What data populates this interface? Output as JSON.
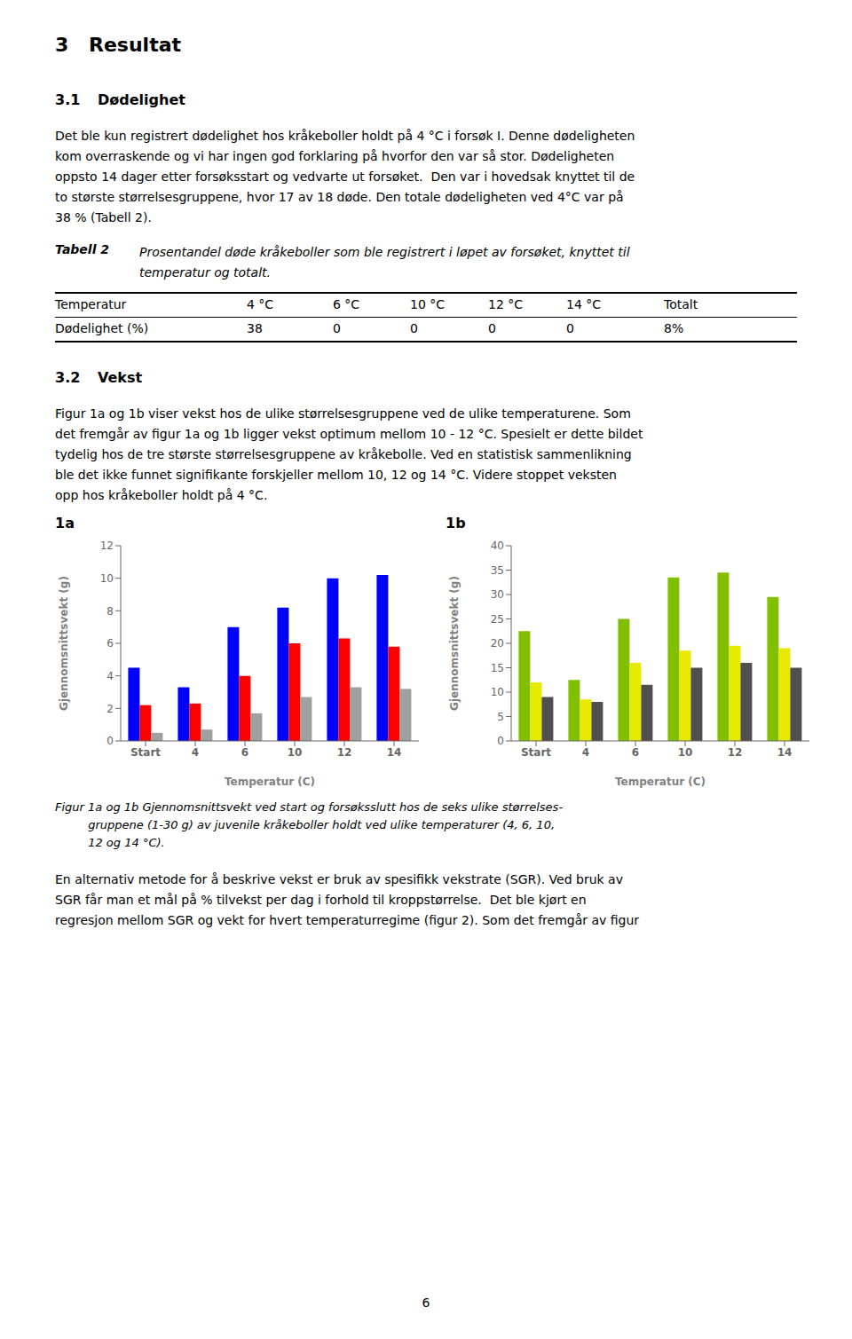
{
  "title": [
    "3",
    "Resultat"
  ],
  "annotations": {
    "section_31": [
      "3.1",
      "Dødelighet"
    ],
    "para1": [
      "Det ble kun registrert dødelighet hos kråkeboller holdt på 4 °C i forsøk I. Denne dødeligheten",
      "kom overraskende og vi har ingen god forklaring på hvorfor den var så stor. Dødeligheten",
      "oppsto 14 dager etter forsøksstart og vedvarte ut forsøket.  Den var i hovedsak knyttet til de",
      "to største størrelsesgruppene, hvor 17 av 18 døde. Den totale dødeligheten ved 4°C var på",
      "38 % (Tabell 2)."
    ],
    "table_caption": [
      "Tabell 2",
      "Prosentandel døde kråkeboller som ble registrert i løpet av forsøket, knyttet til",
      "temperatur og totalt."
    ],
    "table": {
      "headers": [
        "Temperatur",
        "4 °C",
        "6 °C",
        "10 °C",
        "12 °C",
        "14 °C",
        "Totalt"
      ],
      "rows": [
        [
          "Dødelighet (%)",
          "38",
          "0",
          "0",
          "0",
          "0",
          "8%"
        ]
      ]
    },
    "section_32": [
      "3.2",
      "Vekst"
    ],
    "para2": [
      "Figur 1a og 1b viser vekst hos de ulike størrelsesgruppene ved de ulike temperaturene. Som",
      "det fremgår av figur 1a og 1b ligger vekst optimum mellom 10 - 12 °C. Spesielt er dette bildet",
      "tydelig hos de tre største størrelsesgruppene av kråkebolle. Ved en statistisk sammenlikning",
      "ble det ikke funnet signifikante forskjeller mellom 10, 12 og 14 °C. Videre stoppet veksten",
      "opp hos kråkeboller holdt på 4 °C."
    ],
    "figure_caption": [
      "Figur 1a og 1b Gjennomsnittsvekt ved start og forsøksslutt hos de seks ulike størrelses-",
      "         gruppene (1-30 g) av juvenile kråkeboller holdt ved ulike temperaturer (4, 6, 10,",
      "         12 og 14 °C)."
    ],
    "para3": [
      "En alternativ metode for å beskrive vekst er bruk av spesifikk vekstrate (SGR). Ved bruk av",
      "SGR får man et mål på % tilvekst per dag i forhold til kroppstørrelse.  Det ble kjørt en",
      "regresjon mellom SGR og vekt for hvert temperaturregime (figur 2). Som det fremgår av figur"
    ],
    "page_number": "6"
  },
  "chart_data": [
    {
      "type": "bar",
      "title": "1a",
      "xlabel": "Temperatur (C)",
      "ylabel": "Gjennomsnittsvekt (g)",
      "categories": [
        "Start",
        "4",
        "6",
        "10",
        "12",
        "14"
      ],
      "series": [
        {
          "color": "#0000FF",
          "values": [
            4.5,
            3.3,
            7.0,
            8.2,
            10.0,
            10.2
          ]
        },
        {
          "color": "#FF0000",
          "values": [
            2.2,
            2.3,
            4.0,
            6.0,
            6.3,
            5.8
          ]
        },
        {
          "color": "#A0A0A0",
          "values": [
            0.5,
            0.7,
            1.7,
            2.7,
            3.3,
            3.2
          ]
        }
      ],
      "ylim": [
        0,
        12
      ],
      "yticks": [
        0,
        2,
        4,
        6,
        8,
        10,
        12
      ],
      "grid": false
    },
    {
      "type": "bar",
      "title": "1b",
      "xlabel": "Temperatur (C)",
      "ylabel": "Gjennomsnittsvekt (g)",
      "categories": [
        "Start",
        "4",
        "6",
        "10",
        "12",
        "14"
      ],
      "series": [
        {
          "color": "#80C000",
          "values": [
            22.5,
            12.5,
            25.0,
            33.5,
            34.5,
            29.5
          ]
        },
        {
          "color": "#E8E800",
          "values": [
            12.0,
            8.5,
            16.0,
            18.5,
            19.5,
            19.0
          ]
        },
        {
          "color": "#505050",
          "values": [
            9.0,
            8.0,
            11.5,
            15.0,
            16.0,
            15.0
          ]
        }
      ],
      "ylim": [
        0,
        40
      ],
      "yticks": [
        0,
        5,
        10,
        15,
        20,
        25,
        30,
        35,
        40
      ],
      "grid": false
    }
  ]
}
